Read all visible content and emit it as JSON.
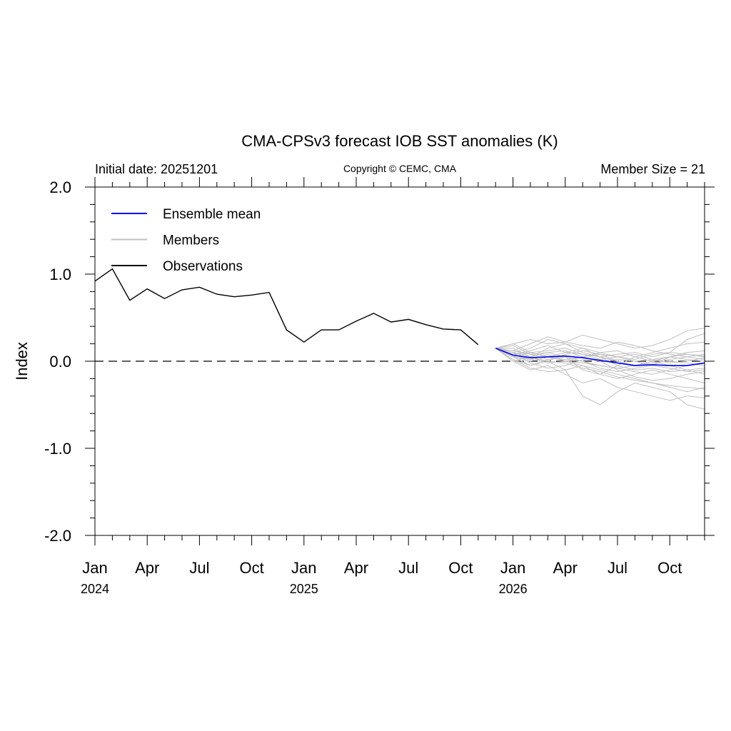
{
  "chart_data": {
    "type": "line",
    "title": "CMA-CPSv3 forecast IOB SST anomalies (K)",
    "subtitle_left": "Initial date: 20251201",
    "subtitle_center": "Copyright © CEMC, CMA",
    "subtitle_right": "Member Size = 21",
    "ylabel": "Index",
    "xlabel": "",
    "ylim": [
      -2.0,
      2.0
    ],
    "y_ticks": [
      "2.0",
      "1.0",
      "0.0",
      "-1.0",
      "-2.0"
    ],
    "y_tick_values": [
      2.0,
      1.0,
      0.0,
      -1.0,
      -2.0
    ],
    "x_start": "2024-01",
    "x_end": "2026-12",
    "x_tick_labels": [
      "Jan",
      "Apr",
      "Jul",
      "Oct",
      "Jan",
      "Apr",
      "Jul",
      "Oct",
      "Jan",
      "Apr",
      "Jul",
      "Oct"
    ],
    "x_tick_dates": [
      "2024-01",
      "2024-04",
      "2024-07",
      "2024-10",
      "2025-01",
      "2025-04",
      "2025-07",
      "2025-10",
      "2026-01",
      "2026-04",
      "2026-07",
      "2026-10"
    ],
    "year_labels": [
      "2024",
      "2025",
      "2026"
    ],
    "year_label_dates": [
      "2024-01",
      "2025-01",
      "2026-01"
    ],
    "zero_line": "dashed",
    "legend_position": "top-left",
    "legend": [
      {
        "label": "Ensemble mean",
        "color": "#0000ee"
      },
      {
        "label": "Members",
        "color": "#c0c0c0"
      },
      {
        "label": "Observations",
        "color": "#000000"
      }
    ],
    "observations": {
      "name": "Observations",
      "color": "#000000",
      "dates": [
        "2024-01",
        "2024-02",
        "2024-03",
        "2024-04",
        "2024-05",
        "2024-06",
        "2024-07",
        "2024-08",
        "2024-09",
        "2024-10",
        "2024-11",
        "2024-12",
        "2025-01",
        "2025-02",
        "2025-03",
        "2025-04",
        "2025-05",
        "2025-06",
        "2025-07",
        "2025-08",
        "2025-09",
        "2025-10",
        "2025-11"
      ],
      "values": [
        0.92,
        1.06,
        0.7,
        0.83,
        0.72,
        0.82,
        0.85,
        0.77,
        0.74,
        0.76,
        0.79,
        0.36,
        0.22,
        0.36,
        0.36,
        0.46,
        0.55,
        0.45,
        0.48,
        0.42,
        0.37,
        0.36,
        0.19
      ]
    },
    "ensemble_mean": {
      "name": "Ensemble mean",
      "color": "#0000ee",
      "dates": [
        "2025-12",
        "2026-01",
        "2026-02",
        "2026-03",
        "2026-04",
        "2026-05",
        "2026-06",
        "2026-07",
        "2026-08",
        "2026-09",
        "2026-10",
        "2026-11",
        "2026-12"
      ],
      "values": [
        0.15,
        0.07,
        0.04,
        0.05,
        0.06,
        0.04,
        0.01,
        -0.02,
        -0.05,
        -0.04,
        -0.05,
        -0.05,
        -0.02
      ]
    },
    "members": {
      "name": "Members",
      "color": "#c0c0c0",
      "dates": [
        "2025-12",
        "2026-01",
        "2026-02",
        "2026-03",
        "2026-04",
        "2026-05",
        "2026-06",
        "2026-07",
        "2026-08",
        "2026-09",
        "2026-10",
        "2026-11",
        "2026-12"
      ],
      "series": [
        [
          0.15,
          0.2,
          0.25,
          0.2,
          0.22,
          0.3,
          0.25,
          0.2,
          0.15,
          0.18,
          0.25,
          0.35,
          0.38
        ],
        [
          0.15,
          0.1,
          0.05,
          0.15,
          0.2,
          0.1,
          0.05,
          0.08,
          0.1,
          0.05,
          0.1,
          0.25,
          0.32
        ],
        [
          0.15,
          0.05,
          -0.05,
          0.0,
          -0.1,
          -0.4,
          -0.5,
          -0.35,
          -0.25,
          -0.3,
          -0.35,
          -0.5,
          -0.55
        ],
        [
          0.15,
          0.0,
          -0.1,
          -0.05,
          -0.15,
          -0.25,
          -0.2,
          -0.3,
          -0.35,
          -0.4,
          -0.45,
          -0.4,
          -0.42
        ],
        [
          0.15,
          0.1,
          0.15,
          0.25,
          0.2,
          0.15,
          0.1,
          0.05,
          0.0,
          -0.05,
          0.05,
          0.1,
          0.12
        ],
        [
          0.15,
          0.2,
          0.1,
          0.05,
          0.0,
          -0.05,
          -0.1,
          -0.15,
          -0.2,
          -0.25,
          -0.3,
          -0.35,
          -0.3
        ],
        [
          0.15,
          0.08,
          0.12,
          0.18,
          0.1,
          0.08,
          0.05,
          0.0,
          -0.05,
          0.0,
          0.05,
          0.08,
          0.05
        ],
        [
          0.15,
          0.02,
          -0.08,
          -0.12,
          -0.1,
          -0.05,
          -0.15,
          -0.2,
          -0.15,
          -0.1,
          -0.15,
          -0.2,
          -0.25
        ],
        [
          0.15,
          0.12,
          0.2,
          0.28,
          0.22,
          0.18,
          0.15,
          0.22,
          0.18,
          0.12,
          0.08,
          0.05,
          0.02
        ],
        [
          0.15,
          0.05,
          0.0,
          0.05,
          0.1,
          0.15,
          0.05,
          -0.05,
          -0.1,
          -0.08,
          -0.12,
          -0.1,
          -0.08
        ],
        [
          0.15,
          0.18,
          0.08,
          0.02,
          0.05,
          0.0,
          -0.05,
          -0.08,
          -0.12,
          -0.15,
          -0.1,
          -0.05,
          -0.02
        ],
        [
          0.15,
          0.0,
          0.05,
          0.1,
          0.05,
          -0.1,
          -0.15,
          -0.05,
          0.05,
          0.1,
          0.15,
          0.2,
          0.22
        ],
        [
          0.15,
          0.1,
          -0.02,
          -0.08,
          -0.05,
          0.02,
          0.0,
          -0.1,
          -0.18,
          -0.22,
          -0.2,
          -0.15,
          -0.12
        ],
        [
          0.15,
          0.05,
          0.1,
          0.12,
          0.15,
          0.08,
          0.02,
          0.05,
          0.08,
          0.02,
          -0.02,
          0.0,
          0.04
        ],
        [
          0.15,
          0.15,
          0.05,
          -0.02,
          0.0,
          0.05,
          0.1,
          0.12,
          0.05,
          0.0,
          -0.05,
          -0.1,
          -0.15
        ],
        [
          0.15,
          0.08,
          0.02,
          0.0,
          -0.02,
          -0.08,
          -0.12,
          -0.18,
          -0.22,
          -0.25,
          -0.28,
          -0.3,
          -0.32
        ],
        [
          0.15,
          0.12,
          0.08,
          0.1,
          0.12,
          0.05,
          0.0,
          0.02,
          0.0,
          0.02,
          0.05,
          0.02,
          0.0
        ],
        [
          0.15,
          0.05,
          0.02,
          0.08,
          0.0,
          -0.02,
          -0.05,
          -0.08,
          -0.05,
          0.0,
          0.02,
          0.05,
          0.08
        ],
        [
          0.15,
          0.1,
          0.05,
          0.0,
          0.08,
          0.12,
          0.08,
          0.0,
          -0.05,
          -0.02,
          0.0,
          -0.02,
          -0.05
        ],
        [
          0.15,
          0.02,
          -0.05,
          0.02,
          0.05,
          0.0,
          -0.08,
          -0.12,
          -0.08,
          -0.05,
          -0.08,
          -0.12,
          -0.1
        ],
        [
          0.15,
          0.08,
          0.1,
          0.05,
          0.02,
          0.05,
          0.08,
          0.05,
          0.02,
          0.08,
          0.1,
          0.08,
          0.06
        ]
      ]
    }
  }
}
